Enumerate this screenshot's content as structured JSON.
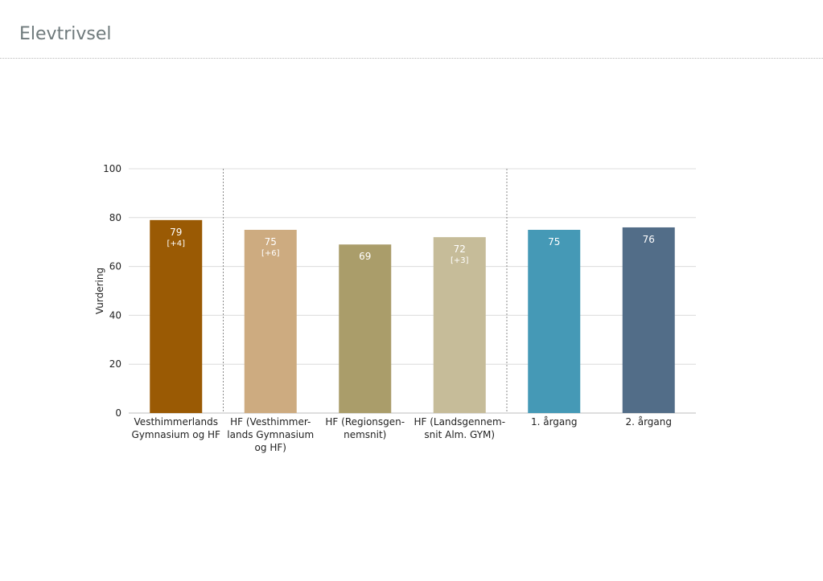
{
  "header": {
    "title": "Elevtrivsel"
  },
  "chart_data": {
    "type": "bar",
    "title": "",
    "xlabel": "",
    "ylabel": "Vurdering",
    "ylim": [
      0,
      100
    ],
    "yticks": [
      "0",
      "20",
      "40",
      "60",
      "80",
      "100"
    ],
    "grid": true,
    "legend": "none",
    "categories": [
      [
        "Vesthimmerlands",
        "Gymnasium og HF"
      ],
      [
        "HF (Vesthimmer-",
        "lands Gymnasium",
        "og HF)"
      ],
      [
        "HF (Regionsgen-",
        "nemsnit)"
      ],
      [
        "HF (Landsgennem-",
        "snit Alm. GYM)"
      ],
      [
        "1. årgang"
      ],
      [
        "2. årgang"
      ]
    ],
    "values": [
      79,
      75,
      69,
      72,
      75,
      76
    ],
    "value_labels": [
      "79",
      "75",
      "69",
      "72",
      "75",
      "76"
    ],
    "delta_labels": [
      "[+4]",
      "[+6]",
      "",
      "[+3]",
      "",
      ""
    ],
    "colors": [
      "#9a5a04",
      "#cdab80",
      "#aa9d6a",
      "#c6bc99",
      "#4599b6",
      "#526d88"
    ],
    "group_separators_after": [
      0,
      3
    ]
  }
}
